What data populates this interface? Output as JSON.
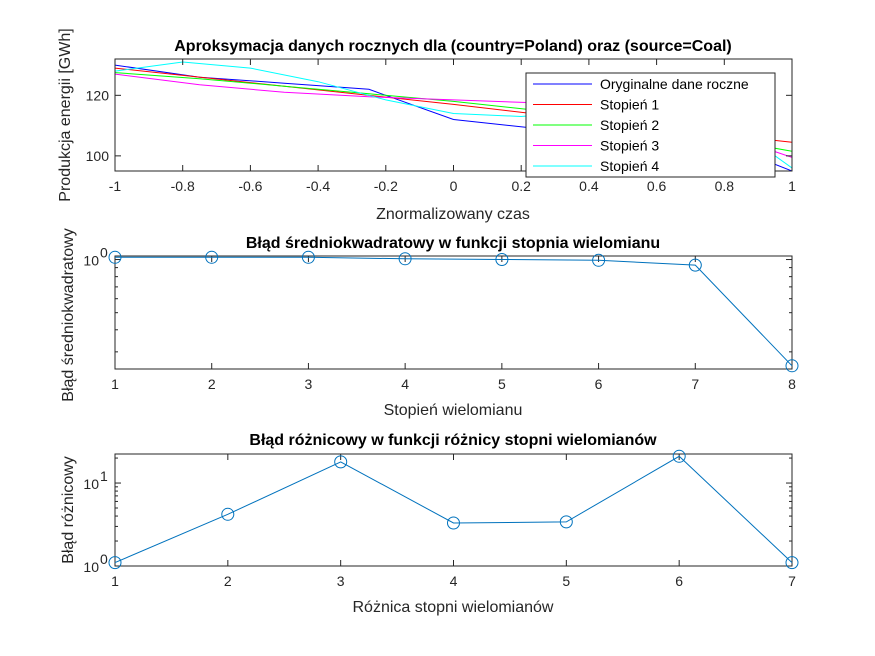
{
  "colors": {
    "axis": "#262626",
    "marker_series": "#0072BD",
    "original": "#0000FF",
    "deg1": "#FF0000",
    "deg2": "#00FF00",
    "deg3": "#FF00FF",
    "deg4": "#00FFFF"
  },
  "chart_data": [
    {
      "type": "line",
      "title": "Aproksymacja danych rocznych dla (country=Poland) oraz (source=Coal)",
      "xlabel": "Znormalizowany czas",
      "ylabel": "Produkcja energii [GWh]",
      "xlim": [
        -1,
        1
      ],
      "ylim": [
        95,
        132
      ],
      "xticks": [
        -1,
        -0.8,
        -0.6,
        -0.4,
        -0.2,
        0,
        0.2,
        0.4,
        0.6,
        0.8,
        1
      ],
      "xtick_labels": [
        "-1",
        "-0.8",
        "-0.6",
        "-0.4",
        "-0.2",
        "0",
        "0.2",
        "0.4",
        "0.6",
        "0.8",
        "1"
      ],
      "yticks": [
        100,
        120
      ],
      "ytick_labels": [
        "100",
        "120"
      ],
      "legend_position": "top-right",
      "series": [
        {
          "name": "Oryginalne dane roczne",
          "color_key": "original",
          "x": [
            -1,
            -0.75,
            -0.5,
            -0.25,
            0,
            0.25,
            0.5,
            0.75,
            1
          ],
          "y": [
            130,
            126,
            124,
            122,
            112,
            109,
            108,
            106,
            95
          ]
        },
        {
          "name": "Stopień 1",
          "color_key": "deg1",
          "x": [
            -1,
            -0.5,
            0,
            0.5,
            1
          ],
          "y": [
            129,
            123,
            117,
            110.5,
            104.5
          ]
        },
        {
          "name": "Stopień 2",
          "color_key": "deg2",
          "x": [
            -1,
            -0.75,
            -0.5,
            -0.25,
            0,
            0.25,
            0.5,
            0.75,
            1
          ],
          "y": [
            127.5,
            125.5,
            123,
            120.5,
            118,
            115,
            111.5,
            106.5,
            101.5
          ]
        },
        {
          "name": "Stopień 3",
          "color_key": "deg3",
          "x": [
            -1,
            -0.75,
            -0.5,
            -0.25,
            0,
            0.25,
            0.5,
            0.75,
            1
          ],
          "y": [
            127,
            123.5,
            121,
            119.5,
            118.5,
            117.5,
            115.5,
            109,
            99.5
          ]
        },
        {
          "name": "Stopień 4",
          "color_key": "deg4",
          "x": [
            -1,
            -0.8,
            -0.6,
            -0.4,
            -0.2,
            0,
            0.2,
            0.4,
            0.6,
            0.8,
            1
          ],
          "y": [
            128,
            131,
            129,
            124.5,
            118.5,
            114,
            113,
            115,
            116,
            112,
            96
          ]
        }
      ]
    },
    {
      "type": "line",
      "title": "Błąd średniokwadratowy w funkcji stopnia wielomianu",
      "xlabel": "Stopień wielomianu",
      "ylabel": "Błąd średniokwadratowy",
      "log_y": true,
      "xlim": [
        1,
        8
      ],
      "ylim_exponent": [
        -0.62,
        0.02
      ],
      "xticks": [
        1,
        2,
        3,
        4,
        5,
        6,
        7,
        8
      ],
      "xtick_labels": [
        "1",
        "2",
        "3",
        "4",
        "5",
        "6",
        "7",
        "8"
      ],
      "ytick_base": "10",
      "ytick_exponents": [
        "0"
      ],
      "markers": "circle",
      "series": [
        {
          "x": [
            1,
            2,
            3,
            4,
            5,
            6,
            7,
            8
          ],
          "y": [
            1.03,
            1.03,
            1.03,
            1.01,
            1.0,
            0.99,
            0.93,
            0.25
          ]
        }
      ]
    },
    {
      "type": "line",
      "title": "Błąd różnicowy w funkcji różnicy stopni wielomianów",
      "xlabel": "Różnica stopni wielomianów",
      "ylabel": "Błąd różnicowy",
      "log_y": true,
      "xlim": [
        1,
        7
      ],
      "ylim_exponent": [
        0,
        1.35
      ],
      "xticks": [
        1,
        2,
        3,
        4,
        5,
        6,
        7
      ],
      "xtick_labels": [
        "1",
        "2",
        "3",
        "4",
        "5",
        "6",
        "7"
      ],
      "ytick_base": "10",
      "ytick_exponents": [
        "0",
        "1"
      ],
      "markers": "circle",
      "series": [
        {
          "x": [
            1,
            2,
            3,
            4,
            5,
            6,
            7
          ],
          "y": [
            1.1,
            4.2,
            18,
            3.3,
            3.4,
            21,
            1.1
          ]
        }
      ]
    }
  ]
}
